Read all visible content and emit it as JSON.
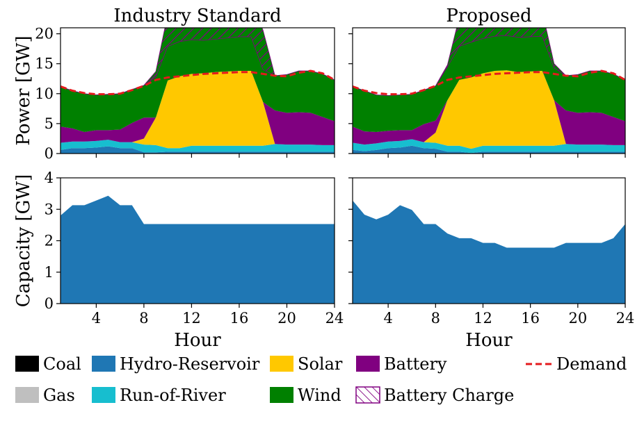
{
  "chart_data": [
    {
      "type": "area",
      "panel": "top-left",
      "title": "Industry Standard",
      "ylabel": "Power [GW]",
      "xlabel": "",
      "xlim": [
        1,
        24
      ],
      "ylim": [
        0,
        21
      ],
      "xticks": [
        4,
        8,
        12,
        16,
        20,
        24
      ],
      "yticks": [
        0,
        5,
        10,
        15,
        20
      ],
      "x": [
        1,
        2,
        3,
        4,
        5,
        6,
        7,
        8,
        9,
        10,
        11,
        12,
        13,
        14,
        15,
        16,
        17,
        18,
        19,
        20,
        21,
        22,
        23,
        24
      ],
      "series": [
        {
          "name": "Hydro-Reservoir",
          "color": "#1f77b4",
          "values": [
            0.6,
            0.9,
            0.9,
            1.0,
            1.2,
            0.9,
            0.9,
            0.2,
            0.2,
            0.3,
            0.3,
            0.3,
            0.3,
            0.3,
            0.3,
            0.3,
            0.3,
            0.3,
            0.3,
            0.3,
            0.3,
            0.3,
            0.3,
            0.3
          ]
        },
        {
          "name": "Run-of-River",
          "color": "#17becf",
          "values": [
            1.2,
            1.1,
            1.1,
            1.1,
            1.1,
            1.0,
            1.0,
            1.3,
            1.2,
            0.6,
            0.6,
            1.0,
            1.0,
            1.0,
            1.0,
            1.0,
            1.0,
            1.0,
            1.3,
            1.2,
            1.2,
            1.2,
            1.1,
            1.1
          ]
        },
        {
          "name": "Solar",
          "color": "#ffc800",
          "values": [
            0,
            0,
            0,
            0,
            0,
            0,
            0,
            1.0,
            4.6,
            11.3,
            12.0,
            12.0,
            12.1,
            12.3,
            12.4,
            12.5,
            12.5,
            7.3,
            0,
            0,
            0,
            0,
            0,
            0
          ]
        },
        {
          "name": "Battery",
          "color": "#800080",
          "values": [
            2.7,
            2.2,
            1.6,
            1.8,
            1.6,
            2.1,
            3.2,
            3.5,
            0,
            0,
            0,
            0,
            0,
            0,
            0,
            0,
            0,
            0,
            5.6,
            5.3,
            5.4,
            5.3,
            4.7,
            4.0
          ]
        },
        {
          "name": "Wind",
          "color": "#008000",
          "values": [
            6.7,
            6.3,
            6.4,
            5.9,
            6.0,
            6.0,
            5.6,
            5.4,
            6.8,
            5.7,
            5.8,
            5.7,
            5.5,
            5.5,
            5.6,
            5.7,
            5.7,
            5.4,
            5.8,
            6.4,
            6.9,
            7.0,
            7.2,
            6.9
          ]
        },
        {
          "name": "Battery Charge",
          "color": "#800080",
          "hatched": true,
          "values": [
            0,
            0,
            0,
            0,
            0,
            0,
            0,
            0,
            0.9,
            5.4,
            6.5,
            7.6,
            7.0,
            6.9,
            6.0,
            5.0,
            6.0,
            6.6,
            0,
            0,
            0,
            0,
            0,
            0
          ]
        }
      ],
      "demand": {
        "name": "Demand",
        "color": "#e41a1c",
        "values": [
          11.2,
          10.5,
          10.1,
          9.9,
          9.9,
          10.0,
          10.6,
          11.3,
          12.3,
          12.7,
          12.9,
          13.1,
          13.3,
          13.4,
          13.5,
          13.6,
          13.6,
          13.3,
          13.0,
          12.9,
          13.5,
          13.8,
          13.4,
          12.3
        ]
      }
    },
    {
      "type": "area",
      "panel": "top-right",
      "title": "Proposed",
      "ylabel": "",
      "xlabel": "",
      "xlim": [
        1,
        24
      ],
      "ylim": [
        0,
        21
      ],
      "xticks": [
        4,
        8,
        12,
        16,
        20,
        24
      ],
      "yticks": [
        0,
        5,
        10,
        15,
        20
      ],
      "x": [
        1,
        2,
        3,
        4,
        5,
        6,
        7,
        8,
        9,
        10,
        11,
        12,
        13,
        14,
        15,
        16,
        17,
        18,
        19,
        20,
        21,
        22,
        23,
        24
      ],
      "series": [
        {
          "name": "Hydro-Reservoir",
          "color": "#1f77b4",
          "values": [
            0.6,
            0.4,
            0.6,
            0.9,
            1.0,
            1.3,
            0.9,
            0.8,
            0.3,
            0.3,
            0.1,
            0.3,
            0.3,
            0.3,
            0.3,
            0.3,
            0.3,
            0.3,
            0.3,
            0.3,
            0.3,
            0.3,
            0.3,
            0.3
          ]
        },
        {
          "name": "Run-of-River",
          "color": "#17becf",
          "values": [
            1.2,
            1.1,
            1.1,
            1.1,
            1.1,
            1.1,
            1.0,
            1.0,
            1.0,
            1.0,
            0.7,
            1.0,
            1.0,
            1.0,
            1.0,
            1.0,
            1.0,
            1.0,
            1.3,
            1.2,
            1.2,
            1.2,
            1.1,
            1.1
          ]
        },
        {
          "name": "Solar",
          "color": "#ffc800",
          "values": [
            0,
            0,
            0,
            0,
            0,
            0,
            0,
            1.7,
            7.6,
            11.0,
            11.9,
            12.1,
            12.5,
            12.6,
            12.3,
            12.4,
            12.5,
            7.6,
            0,
            0,
            0,
            0,
            0,
            0
          ]
        },
        {
          "name": "Battery",
          "color": "#800080",
          "values": [
            2.7,
            2.2,
            1.9,
            1.8,
            1.8,
            1.5,
            3.0,
            2.0,
            0,
            0,
            0,
            0,
            0,
            0,
            0,
            0,
            0,
            0,
            5.6,
            5.3,
            5.4,
            5.3,
            4.7,
            4.0
          ]
        },
        {
          "name": "Wind",
          "color": "#008000",
          "values": [
            6.7,
            6.8,
            6.2,
            5.9,
            5.9,
            6.0,
            5.7,
            5.8,
            5.6,
            5.6,
            5.9,
            5.8,
            5.8,
            5.8,
            5.8,
            5.8,
            5.8,
            5.4,
            5.8,
            6.4,
            6.9,
            7.0,
            7.2,
            6.9
          ]
        },
        {
          "name": "Battery Charge",
          "color": "#800080",
          "hatched": true,
          "values": [
            0,
            0,
            0,
            0,
            0,
            0,
            0,
            0,
            0.3,
            4.9,
            3.9,
            6.4,
            6.3,
            6.3,
            5.5,
            5.5,
            4.2,
            0.7,
            0,
            0,
            0,
            0,
            0,
            0
          ]
        }
      ],
      "demand": {
        "name": "Demand",
        "color": "#e41a1c",
        "values": [
          11.2,
          10.5,
          10.1,
          9.9,
          9.9,
          10.0,
          10.6,
          11.3,
          12.3,
          12.7,
          12.9,
          13.1,
          13.3,
          13.4,
          13.5,
          13.6,
          13.6,
          13.3,
          13.0,
          12.9,
          13.5,
          13.8,
          13.4,
          12.3
        ]
      }
    },
    {
      "type": "area",
      "panel": "bottom-left",
      "title": "",
      "ylabel": "Capacity [GW]",
      "xlabel": "Hour",
      "xlim": [
        1,
        24
      ],
      "ylim": [
        0,
        4
      ],
      "xticks": [
        4,
        8,
        12,
        16,
        20,
        24
      ],
      "yticks": [
        0,
        1,
        2,
        3,
        4
      ],
      "x": [
        1,
        2,
        3,
        4,
        5,
        6,
        7,
        8,
        9,
        10,
        11,
        12,
        13,
        14,
        15,
        16,
        17,
        18,
        19,
        20,
        21,
        22,
        23,
        24
      ],
      "series": [
        {
          "name": "Hydro-Reservoir",
          "color": "#1f77b4",
          "values": [
            2.8,
            3.13,
            3.13,
            3.28,
            3.43,
            3.13,
            3.13,
            2.53,
            2.53,
            2.53,
            2.53,
            2.53,
            2.53,
            2.53,
            2.53,
            2.53,
            2.53,
            2.53,
            2.53,
            2.53,
            2.53,
            2.53,
            2.53,
            2.53
          ]
        }
      ]
    },
    {
      "type": "area",
      "panel": "bottom-right",
      "title": "",
      "ylabel": "",
      "xlabel": "Hour",
      "xlim": [
        1,
        24
      ],
      "ylim": [
        0,
        4
      ],
      "xticks": [
        4,
        8,
        12,
        16,
        20,
        24
      ],
      "yticks": [
        0,
        1,
        2,
        3,
        4
      ],
      "x": [
        1,
        2,
        3,
        4,
        5,
        6,
        7,
        8,
        9,
        10,
        11,
        12,
        13,
        14,
        15,
        16,
        17,
        18,
        19,
        20,
        21,
        22,
        23,
        24
      ],
      "series": [
        {
          "name": "Hydro-Reservoir",
          "color": "#1f77b4",
          "values": [
            3.28,
            2.83,
            2.68,
            2.83,
            3.13,
            2.98,
            2.53,
            2.53,
            2.23,
            2.08,
            2.08,
            1.93,
            1.93,
            1.78,
            1.78,
            1.78,
            1.78,
            1.78,
            1.93,
            1.93,
            1.93,
            1.93,
            2.08,
            2.53
          ]
        }
      ]
    }
  ],
  "legend": [
    {
      "label": "Coal",
      "color": "#000000",
      "kind": "swatch"
    },
    {
      "label": "Hydro-Reservoir",
      "color": "#1f77b4",
      "kind": "swatch"
    },
    {
      "label": "Solar",
      "color": "#ffc800",
      "kind": "swatch"
    },
    {
      "label": "Battery",
      "color": "#800080",
      "kind": "swatch"
    },
    {
      "label": "Demand",
      "color": "#e41a1c",
      "kind": "dashed-line"
    },
    {
      "label": "Gas",
      "color": "#bfbfbf",
      "kind": "swatch"
    },
    {
      "label": "Run-of-River",
      "color": "#17becf",
      "kind": "swatch"
    },
    {
      "label": "Wind",
      "color": "#008000",
      "kind": "swatch"
    },
    {
      "label": "Battery Charge",
      "color": "#800080",
      "kind": "hatched"
    }
  ]
}
